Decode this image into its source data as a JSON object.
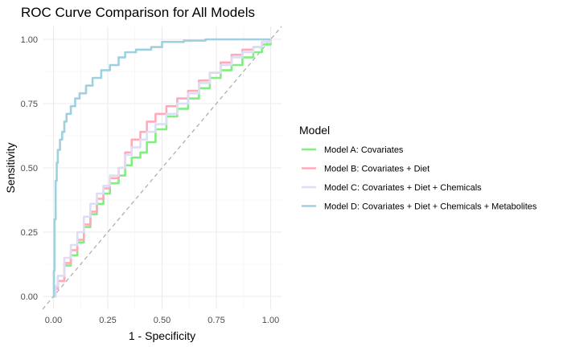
{
  "chart_data": {
    "type": "line",
    "title": "ROC Curve Comparison for All Models",
    "xlabel": "1 - Specificity",
    "ylabel": "Sensitivity",
    "xlim": [
      -0.05,
      1.05
    ],
    "ylim": [
      -0.05,
      1.05
    ],
    "x_ticks": [
      "0.00",
      "0.25",
      "0.50",
      "0.75",
      "1.00"
    ],
    "y_ticks": [
      "0.00",
      "0.25",
      "0.50",
      "0.75",
      "1.00"
    ],
    "grid": true,
    "legend": {
      "title": "Model",
      "placement": "right"
    },
    "reference_line": {
      "style": "dashed",
      "color": "#aaaaaa",
      "from": [
        -0.05,
        -0.05
      ],
      "to": [
        1.05,
        1.05
      ]
    },
    "series": [
      {
        "name": "Model A: Covariates",
        "color": "#80ee80",
        "points": [
          [
            0,
            0
          ],
          [
            0.01,
            0.03
          ],
          [
            0.02,
            0.06
          ],
          [
            0.05,
            0.12
          ],
          [
            0.08,
            0.16
          ],
          [
            0.11,
            0.21
          ],
          [
            0.14,
            0.27
          ],
          [
            0.17,
            0.32
          ],
          [
            0.2,
            0.36
          ],
          [
            0.23,
            0.4
          ],
          [
            0.26,
            0.44
          ],
          [
            0.3,
            0.47
          ],
          [
            0.33,
            0.51
          ],
          [
            0.36,
            0.54
          ],
          [
            0.4,
            0.56
          ],
          [
            0.43,
            0.6
          ],
          [
            0.47,
            0.65
          ],
          [
            0.52,
            0.7
          ],
          [
            0.57,
            0.73
          ],
          [
            0.62,
            0.77
          ],
          [
            0.67,
            0.81
          ],
          [
            0.72,
            0.85
          ],
          [
            0.77,
            0.88
          ],
          [
            0.82,
            0.9
          ],
          [
            0.87,
            0.93
          ],
          [
            0.92,
            0.95
          ],
          [
            0.96,
            0.98
          ],
          [
            1.0,
            1.0
          ]
        ]
      },
      {
        "name": "Model B: Covariates + Diet",
        "color": "#ffaab8",
        "points": [
          [
            0,
            0
          ],
          [
            0.01,
            0.03
          ],
          [
            0.02,
            0.06
          ],
          [
            0.05,
            0.13
          ],
          [
            0.08,
            0.18
          ],
          [
            0.11,
            0.22
          ],
          [
            0.14,
            0.28
          ],
          [
            0.17,
            0.33
          ],
          [
            0.2,
            0.38
          ],
          [
            0.23,
            0.42
          ],
          [
            0.26,
            0.46
          ],
          [
            0.3,
            0.5
          ],
          [
            0.33,
            0.56
          ],
          [
            0.36,
            0.61
          ],
          [
            0.4,
            0.64
          ],
          [
            0.43,
            0.68
          ],
          [
            0.47,
            0.71
          ],
          [
            0.52,
            0.74
          ],
          [
            0.57,
            0.77
          ],
          [
            0.62,
            0.8
          ],
          [
            0.67,
            0.84
          ],
          [
            0.72,
            0.87
          ],
          [
            0.77,
            0.91
          ],
          [
            0.82,
            0.94
          ],
          [
            0.87,
            0.96
          ],
          [
            0.92,
            0.97
          ],
          [
            0.96,
            0.99
          ],
          [
            1.0,
            1.0
          ]
        ]
      },
      {
        "name": "Model C: Covariates + Diet + Chemicals",
        "color": "#ddddf5",
        "points": [
          [
            0,
            0
          ],
          [
            0.01,
            0.04
          ],
          [
            0.02,
            0.08
          ],
          [
            0.05,
            0.15
          ],
          [
            0.08,
            0.2
          ],
          [
            0.11,
            0.25
          ],
          [
            0.14,
            0.31
          ],
          [
            0.17,
            0.36
          ],
          [
            0.2,
            0.4
          ],
          [
            0.23,
            0.43
          ],
          [
            0.26,
            0.47
          ],
          [
            0.3,
            0.5
          ],
          [
            0.33,
            0.55
          ],
          [
            0.36,
            0.58
          ],
          [
            0.4,
            0.61
          ],
          [
            0.43,
            0.64
          ],
          [
            0.47,
            0.67
          ],
          [
            0.52,
            0.71
          ],
          [
            0.57,
            0.75
          ],
          [
            0.62,
            0.79
          ],
          [
            0.67,
            0.83
          ],
          [
            0.72,
            0.87
          ],
          [
            0.77,
            0.9
          ],
          [
            0.82,
            0.93
          ],
          [
            0.87,
            0.95
          ],
          [
            0.92,
            0.97
          ],
          [
            0.96,
            0.99
          ],
          [
            1.0,
            1.0
          ]
        ]
      },
      {
        "name": "Model D: Covariates + Diet + Chemicals + Metabolites",
        "color": "#9fd0e0",
        "points": [
          [
            0,
            0
          ],
          [
            0.002,
            0.1
          ],
          [
            0.005,
            0.3
          ],
          [
            0.01,
            0.45
          ],
          [
            0.015,
            0.52
          ],
          [
            0.02,
            0.57
          ],
          [
            0.03,
            0.61
          ],
          [
            0.04,
            0.64
          ],
          [
            0.05,
            0.68
          ],
          [
            0.06,
            0.71
          ],
          [
            0.08,
            0.74
          ],
          [
            0.1,
            0.77
          ],
          [
            0.12,
            0.79
          ],
          [
            0.15,
            0.82
          ],
          [
            0.18,
            0.85
          ],
          [
            0.22,
            0.88
          ],
          [
            0.26,
            0.9
          ],
          [
            0.3,
            0.93
          ],
          [
            0.33,
            0.95
          ],
          [
            0.38,
            0.96
          ],
          [
            0.45,
            0.97
          ],
          [
            0.5,
            0.99
          ],
          [
            0.6,
            0.995
          ],
          [
            0.7,
            1.0
          ],
          [
            1.0,
            1.0
          ]
        ]
      }
    ]
  }
}
